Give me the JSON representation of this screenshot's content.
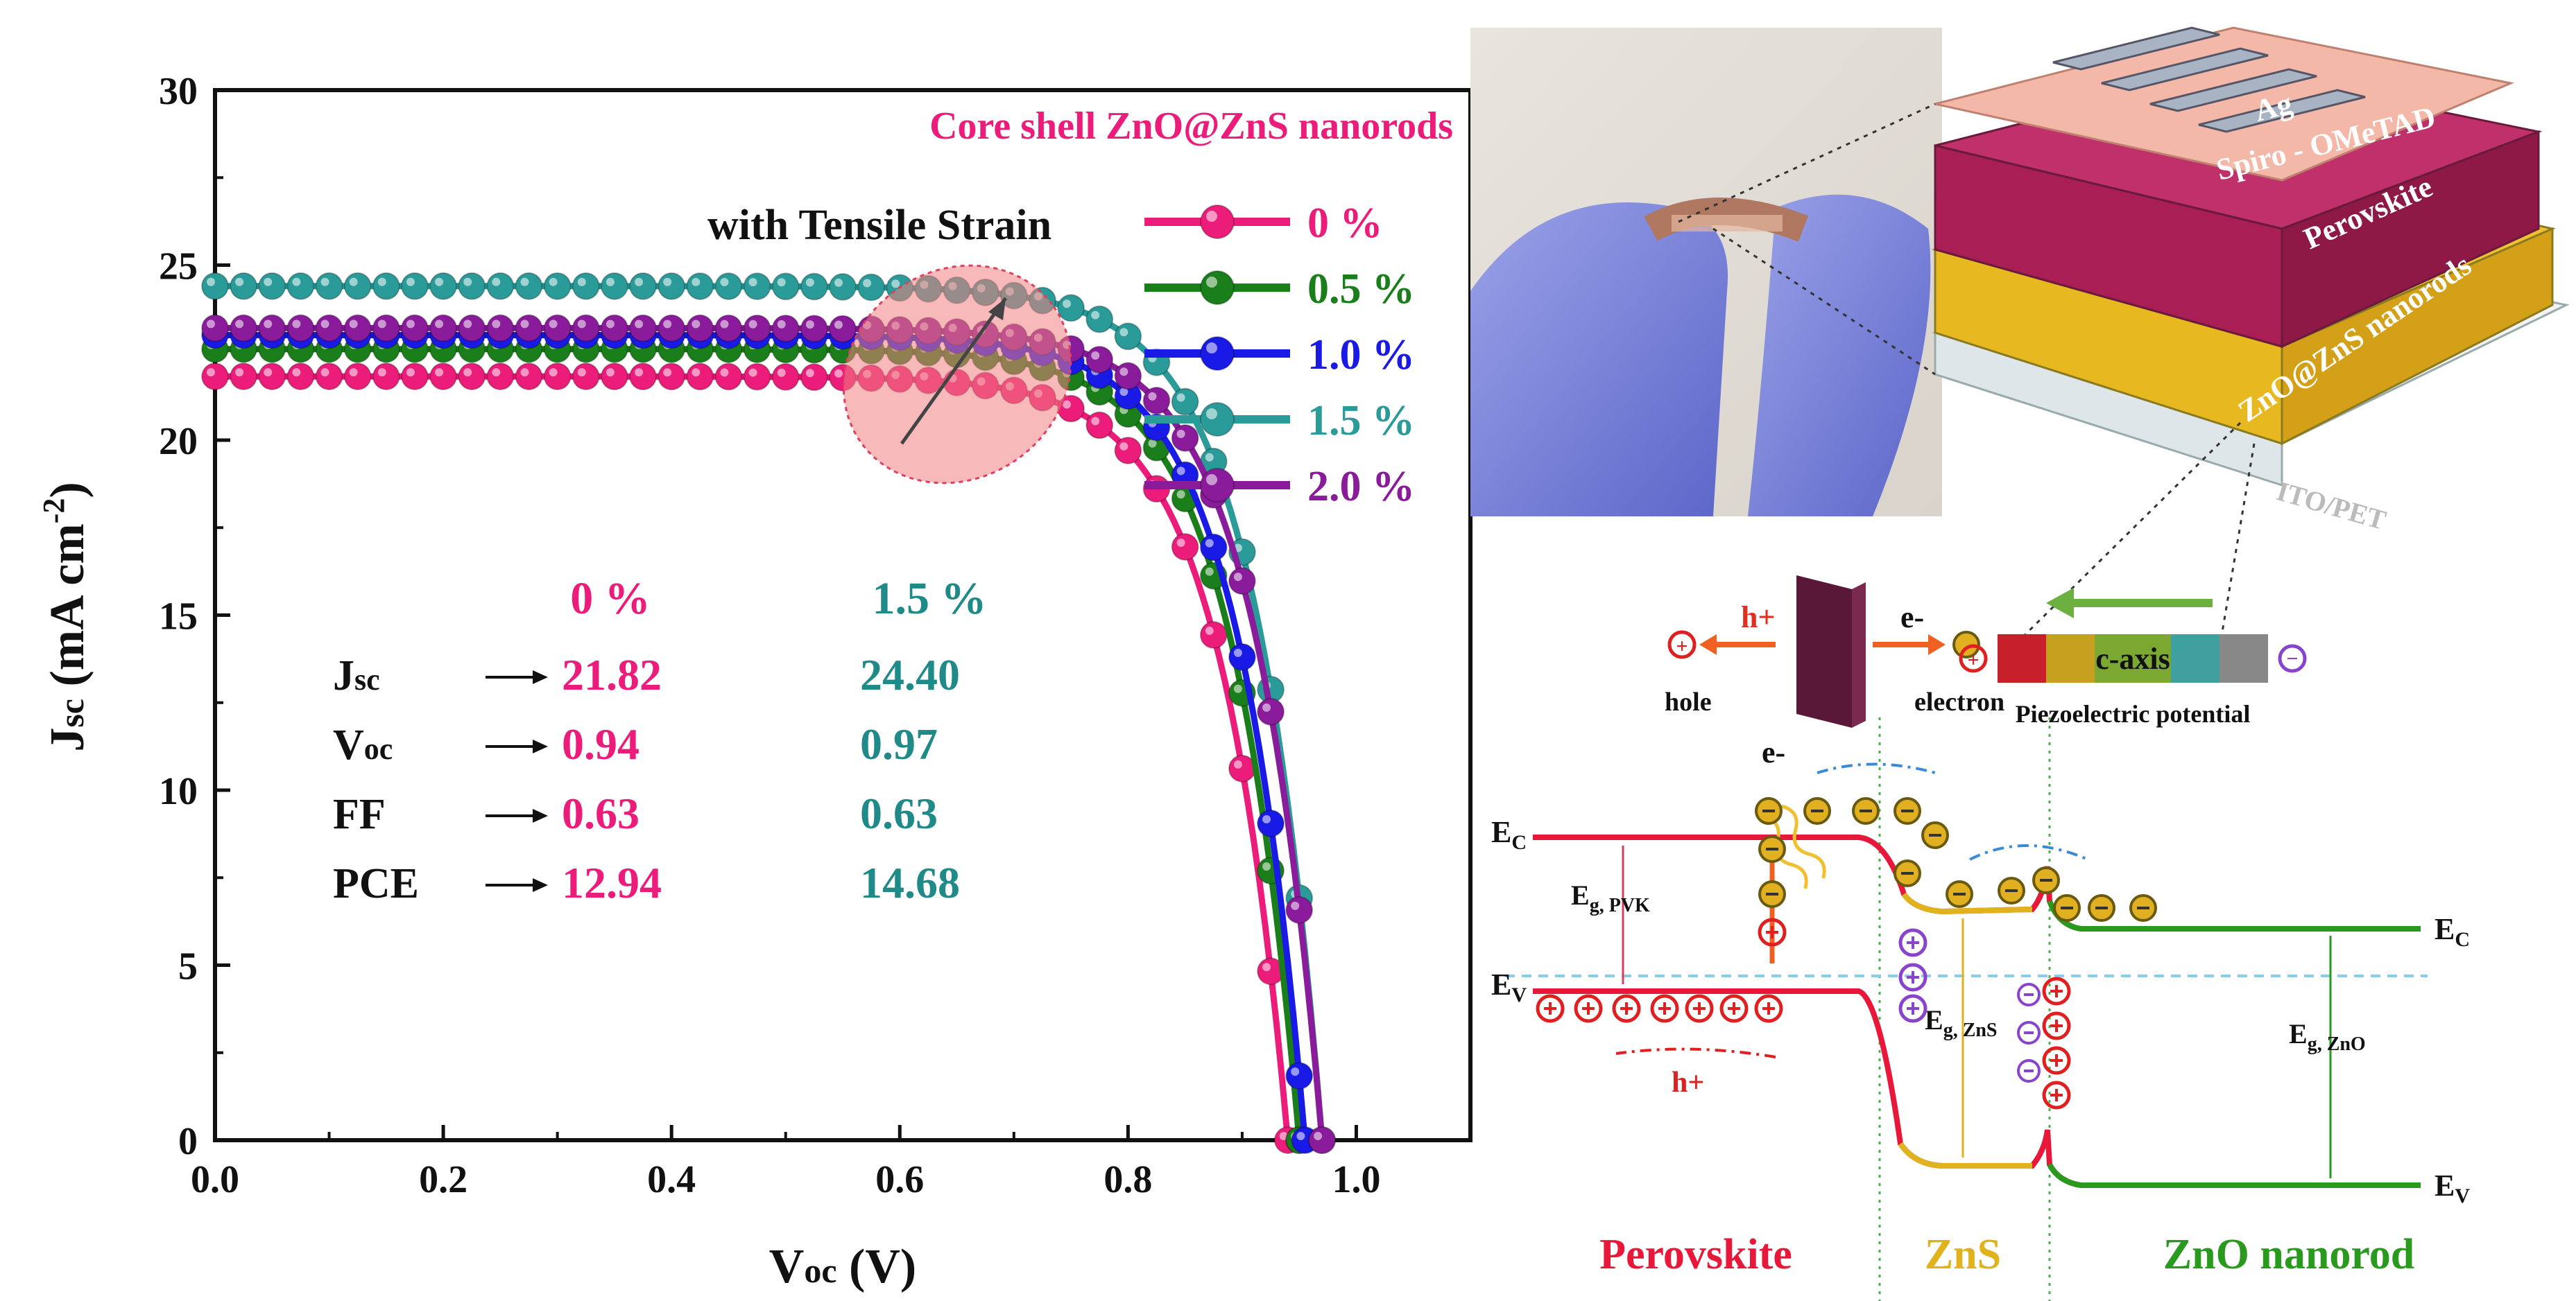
{
  "chart_data": {
    "type": "line",
    "title": "",
    "annotation_top": "Core shell ZnO@ZnS nanorods",
    "legend_title": "with Tensile Strain",
    "xlabel": "Voc (V)",
    "ylabel": "Jsc (mA cm-2)",
    "xlabel_main": "V",
    "xlabel_sub": "oc",
    "xlabel_unit": " (V)",
    "ylabel_main": "J",
    "ylabel_sub": "sc",
    "ylabel_unit": " (mA cm",
    "ylabel_sup": "-2",
    "ylabel_close": ")",
    "xlim": [
      0.0,
      1.1
    ],
    "ylim": [
      0,
      30
    ],
    "xticks": [
      "0.0",
      "0.2",
      "0.4",
      "0.6",
      "0.8",
      "1.0"
    ],
    "yticks": [
      "0",
      "5",
      "10",
      "15",
      "20",
      "25",
      "30"
    ],
    "series": [
      {
        "name": "0 %",
        "color": "#ec1c7b",
        "jsc": 21.82,
        "voc": 0.94,
        "knee": 0.52
      },
      {
        "name": "0.5 %",
        "color": "#1a7f1a",
        "jsc": 22.6,
        "voc": 0.95,
        "knee": 0.54
      },
      {
        "name": "1.0 %",
        "color": "#1a1ae6",
        "jsc": 23.0,
        "voc": 0.955,
        "knee": 0.55
      },
      {
        "name": "1.5 %",
        "color": "#2a9b98",
        "jsc": 24.4,
        "voc": 0.97,
        "knee": 0.58
      },
      {
        "name": "2.0 %",
        "color": "#8a1b9a",
        "jsc": 23.2,
        "voc": 0.97,
        "knee": 0.56
      }
    ],
    "table": {
      "col_headers": [
        "0 %",
        "1.5 %"
      ],
      "rows": [
        {
          "label": "Jsc",
          "label_main": "J",
          "label_sub": "sc",
          "v0": "21.82",
          "v15": "24.40"
        },
        {
          "label": "Voc",
          "label_main": "V",
          "label_sub": "oc",
          "v0": "0.94",
          "v15": "0.97"
        },
        {
          "label": "FF",
          "label_main": "FF",
          "label_sub": "",
          "v0": "0.63",
          "v15": "0.63"
        },
        {
          "label": "PCE",
          "label_main": "PCE",
          "label_sub": "",
          "v0": "12.94",
          "v15": "14.68"
        }
      ]
    }
  },
  "device": {
    "layers": [
      "Ag",
      "Spiro - OMeTAD",
      "Perovskite",
      "ZnO@ZnS nanorods",
      "ITO/PET"
    ]
  },
  "band": {
    "hole_label": "hole",
    "electron_label": "electron",
    "h_plus": "h+",
    "e_minus": "e-",
    "caxis": "c-axis",
    "piezo": "Piezoelectric potential",
    "ec": "E",
    "ec_sub": "C",
    "ev": "E",
    "ev_sub": "V",
    "eg_pvk": "E",
    "eg_pvk_sub": "g, PVK",
    "eg_zns": "E",
    "eg_zns_sub": "g, ZnS",
    "eg_zno": "E",
    "eg_zno_sub": "g, ZnO",
    "region_perovskite": "Perovskite",
    "region_zns": "ZnS",
    "region_zno": "ZnO nanorod",
    "color_perovskite": "#e8183a",
    "color_zns": "#e0b21c",
    "color_zno": "#2a9a1e"
  }
}
